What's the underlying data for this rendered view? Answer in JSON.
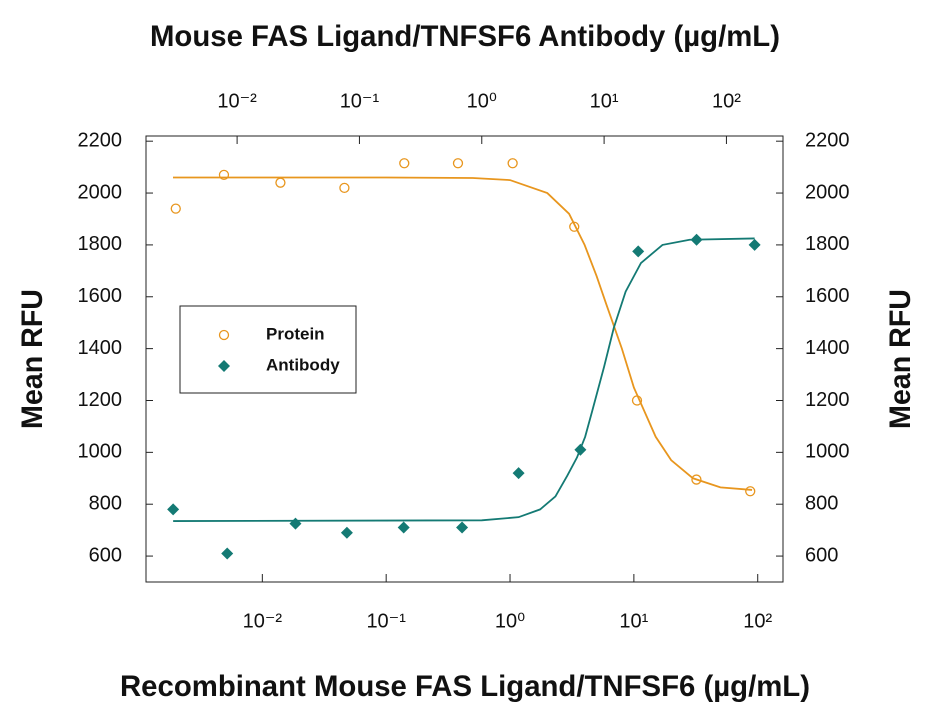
{
  "chart_data": {
    "type": "scatter",
    "title": "Mouse FAS Ligand/TNFSF6 Antibody (µg/mL)",
    "xlabel": "Recombinant Mouse FAS Ligand/TNFSF6 (µg/mL)",
    "ylabel": "Mean RFU",
    "y2label": "Mean RFU",
    "xscale": "log",
    "xlim": [
      0.00115,
      160
    ],
    "xticks": [
      {
        "value": 0.01,
        "label": "10⁻²"
      },
      {
        "value": 0.1,
        "label": "10⁻¹"
      },
      {
        "value": 1,
        "label": "10⁰"
      },
      {
        "value": 10,
        "label": "10¹"
      },
      {
        "value": 100,
        "label": "10²"
      }
    ],
    "x2lim": [
      0.0018,
      290
    ],
    "x2ticks": [
      {
        "value": 0.01,
        "label": "10⁻²"
      },
      {
        "value": 0.1,
        "label": "10⁻¹"
      },
      {
        "value": 1,
        "label": "10⁰"
      },
      {
        "value": 10,
        "label": "10¹"
      },
      {
        "value": 100,
        "label": "10²"
      }
    ],
    "ylim": [
      500,
      2220
    ],
    "yticks": [
      600,
      800,
      1000,
      1200,
      1400,
      1600,
      1800,
      2000,
      2200
    ],
    "y2lim": [
      500,
      2220
    ],
    "y2ticks": [
      600,
      800,
      1000,
      1200,
      1400,
      1600,
      1800,
      2000,
      2200
    ],
    "series": [
      {
        "name": "Protein",
        "color": "#e8961e",
        "marker": "open-circle",
        "xaxis": "x",
        "x": [
          0.002,
          0.0049,
          0.014,
          0.046,
          0.14,
          0.38,
          1.05,
          3.3,
          10.6,
          32,
          87
        ],
        "values": [
          1940,
          2070,
          2040,
          2020,
          2115,
          2115,
          2115,
          1870,
          1200,
          895,
          850
        ],
        "fit_x": [
          0.0019,
          0.1,
          0.5,
          1,
          2,
          3,
          4,
          5,
          6,
          8,
          10,
          15,
          20,
          30,
          50,
          90
        ],
        "fit_values": [
          2060,
          2060,
          2058,
          2050,
          2000,
          1920,
          1800,
          1680,
          1570,
          1400,
          1250,
          1060,
          970,
          900,
          865,
          855
        ]
      },
      {
        "name": "Antibody",
        "color": "#147a74",
        "marker": "diamond",
        "xaxis": "x2",
        "x": [
          0.003,
          0.0083,
          0.03,
          0.079,
          0.23,
          0.69,
          2.0,
          6.4,
          19,
          57,
          170
        ],
        "values": [
          780,
          610,
          725,
          690,
          710,
          710,
          920,
          1010,
          1775,
          1820,
          1800
        ],
        "fit_x": [
          0.003,
          1,
          2,
          3,
          4,
          5,
          6,
          7,
          8,
          10,
          12,
          15,
          20,
          30,
          50,
          170
        ],
        "fit_values": [
          735,
          738,
          750,
          780,
          830,
          910,
          980,
          1060,
          1160,
          1330,
          1480,
          1620,
          1730,
          1800,
          1820,
          1825
        ]
      }
    ],
    "legend": "left"
  }
}
